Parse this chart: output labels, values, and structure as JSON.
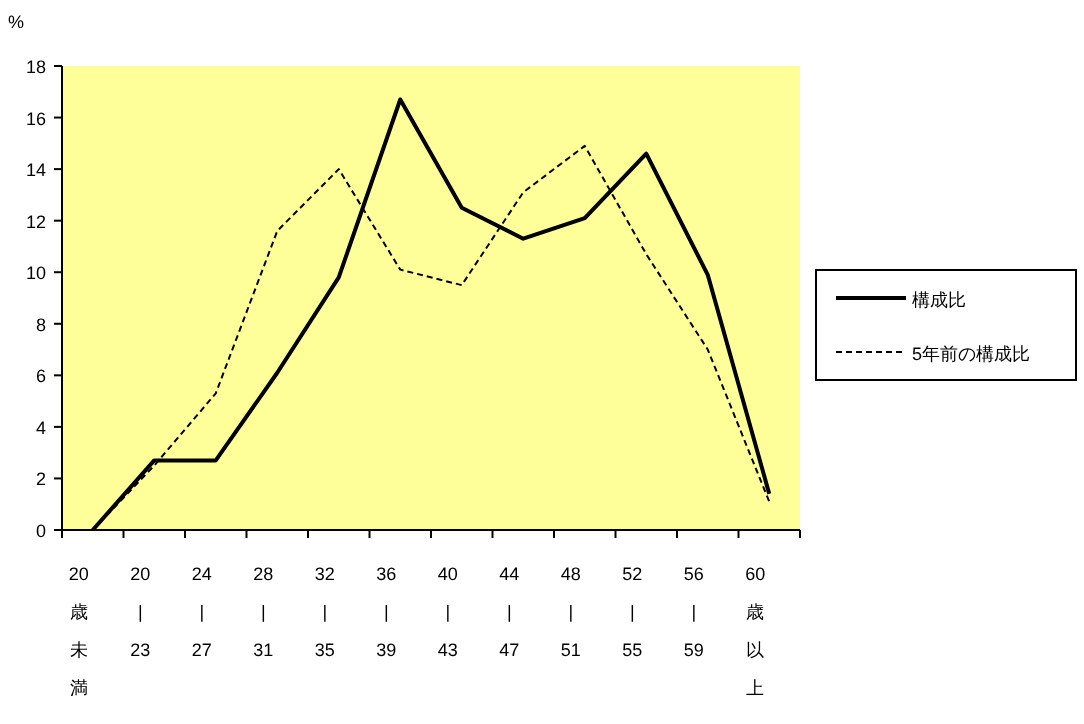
{
  "chart_data": {
    "type": "line",
    "ylabel": "%",
    "categories": [
      "20歳未満",
      "20\n|\n23",
      "24\n|\n27",
      "28\n|\n31",
      "32\n|\n35",
      "36\n|\n39",
      "40\n|\n43",
      "44\n|\n47",
      "48\n|\n51",
      "52\n|\n55",
      "56\n|\n59",
      "60歳以上"
    ],
    "series": [
      {
        "name": "構成比",
        "color": "#000000",
        "line_style": "solid",
        "values": [
          0,
          2.7,
          2.7,
          6.1,
          9.8,
          16.7,
          12.5,
          11.3,
          12.1,
          14.6,
          9.9,
          1.4
        ]
      },
      {
        "name": "5年前の構成比",
        "color": "#000000",
        "line_style": "dashed",
        "values": [
          0,
          2.5,
          5.3,
          11.6,
          14.0,
          10.1,
          9.5,
          13.1,
          14.9,
          10.7,
          7.0,
          1.1
        ]
      }
    ],
    "ylim": [
      0,
      18
    ],
    "yticks": [
      0,
      2,
      4,
      6,
      8,
      10,
      12,
      14,
      16,
      18
    ],
    "grid": false,
    "legend": "right",
    "marker": "none"
  }
}
